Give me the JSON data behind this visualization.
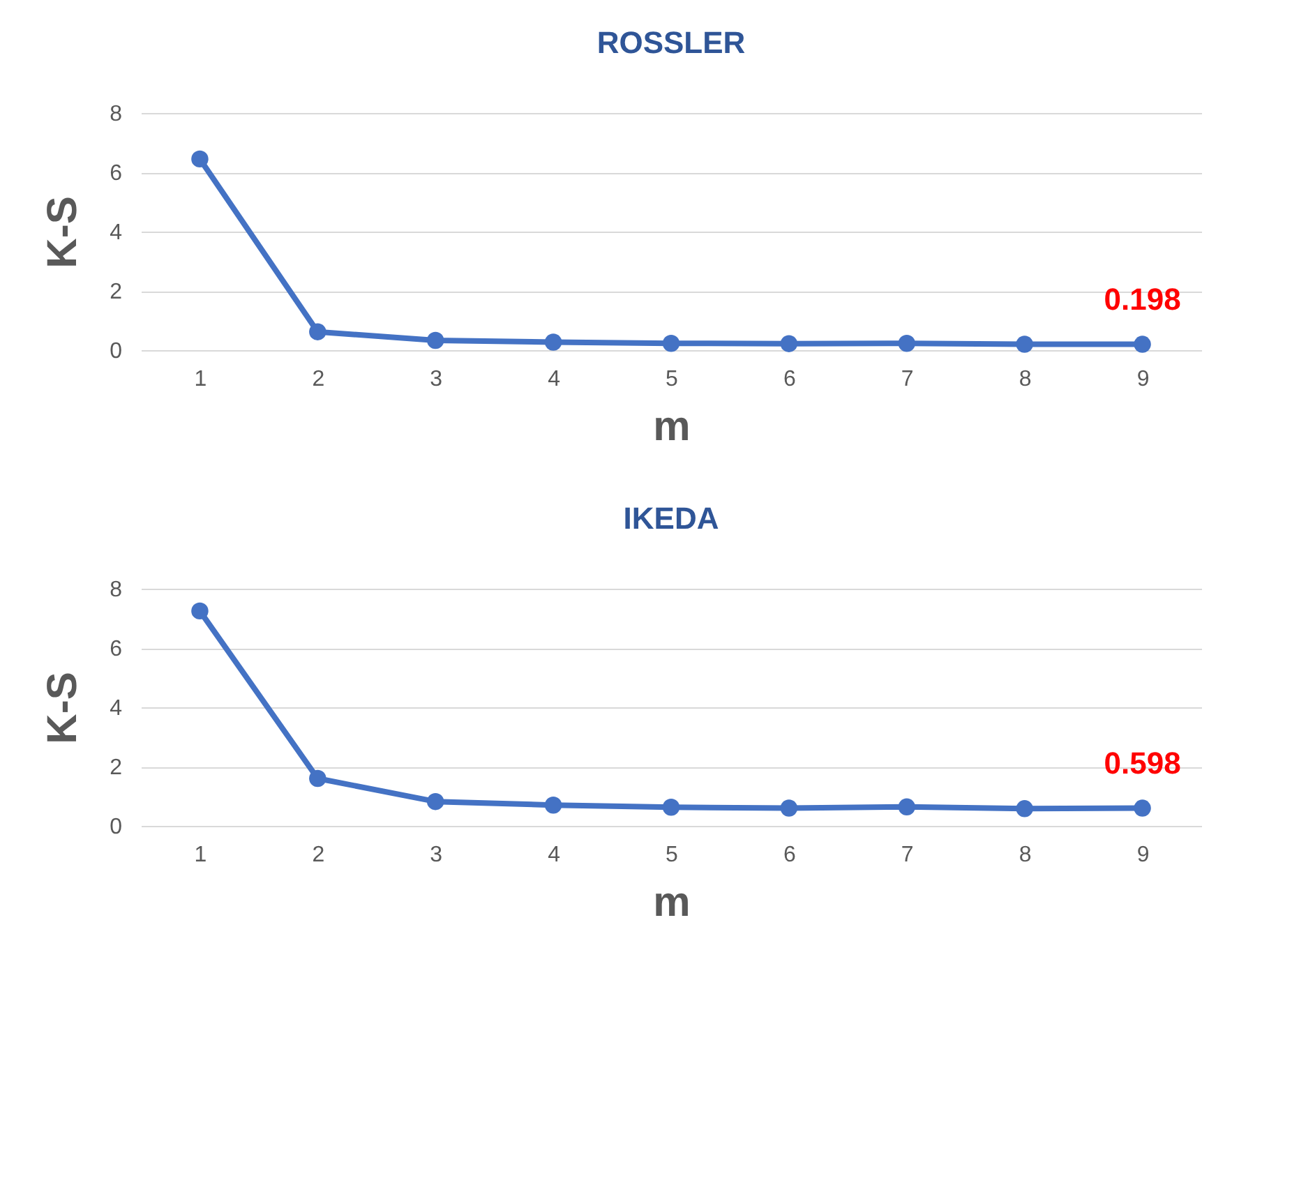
{
  "chart_data": [
    {
      "type": "line",
      "title": "ROSSLER",
      "xlabel": "m",
      "ylabel": "K-S",
      "categories": [
        "1",
        "2",
        "3",
        "4",
        "5",
        "6",
        "7",
        "8",
        "9"
      ],
      "series": [
        {
          "color": "#4472c4",
          "values": [
            6.45,
            0.62,
            0.33,
            0.27,
            0.23,
            0.22,
            0.23,
            0.2,
            0.198
          ],
          "value_labels": [
            null,
            null,
            null,
            null,
            null,
            null,
            null,
            null,
            "0.198"
          ]
        }
      ],
      "ylim": [
        0,
        8
      ],
      "yticks": [
        0,
        2,
        4,
        6,
        8
      ],
      "grid": "y",
      "marker": "circle",
      "line_style": "solid"
    },
    {
      "type": "line",
      "title": "IKEDA",
      "xlabel": "m",
      "ylabel": "K-S",
      "categories": [
        "1",
        "2",
        "3",
        "4",
        "5",
        "6",
        "7",
        "8",
        "9"
      ],
      "series": [
        {
          "color": "#4472c4",
          "values": [
            7.25,
            1.6,
            0.82,
            0.7,
            0.63,
            0.6,
            0.64,
            0.58,
            0.598
          ],
          "value_labels": [
            null,
            null,
            null,
            null,
            null,
            null,
            null,
            null,
            "0.598"
          ]
        }
      ],
      "ylim": [
        0,
        8
      ],
      "yticks": [
        0,
        2,
        4,
        6,
        8
      ],
      "grid": "y",
      "marker": "circle",
      "line_style": "solid"
    }
  ]
}
